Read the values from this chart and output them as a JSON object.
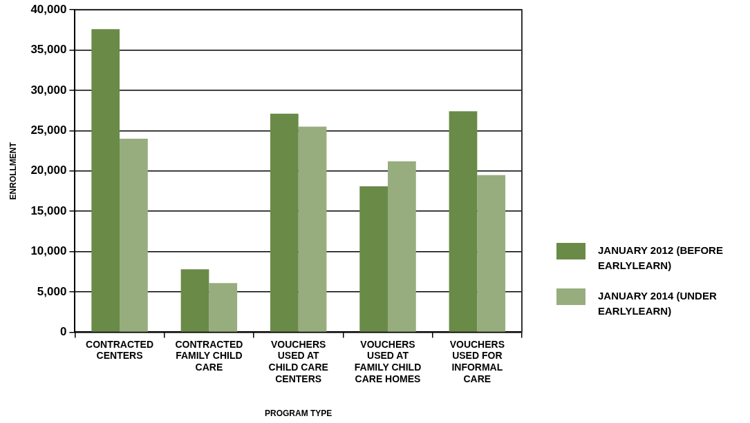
{
  "chart_data": {
    "type": "bar",
    "xlabel": "PROGRAM TYPE",
    "ylabel": "ENROLLMENT",
    "categories": [
      "CONTRACTED CENTERS",
      "CONTRACTED FAMILY CHILD CARE",
      "VOUCHERS USED AT CHILD CARE CENTERS",
      "VOUCHERS USED AT FAMILY CHILD CARE HOMES",
      "VOUCHERS USED FOR INFORMAL CARE"
    ],
    "series": [
      {
        "name": "JANUARY 2012 (BEFORE EARLYLEARN)",
        "color": "#6a8a48",
        "values": [
          37600,
          7800,
          27100,
          18100,
          27400
        ]
      },
      {
        "name": "JANUARY 2014 (UNDER EARLYLEARN)",
        "color": "#97ad7e",
        "values": [
          24000,
          6100,
          25500,
          21200,
          19500
        ]
      }
    ],
    "ylim": [
      0,
      40000
    ],
    "yticks": [
      0,
      {
        "value": 5000,
        "label": "5,000"
      },
      {
        "value": 10000,
        "label": "10,000"
      },
      {
        "value": 15000,
        "label": "15,000"
      },
      {
        "value": 20000,
        "label": "20,000"
      },
      {
        "value": 25000,
        "label": "25,000"
      },
      {
        "value": 30000,
        "label": "30,000"
      },
      {
        "value": 35000,
        "label": "35,000"
      },
      {
        "value": 40000,
        "label": "40,000"
      }
    ],
    "grid": "y",
    "legend": "right"
  }
}
